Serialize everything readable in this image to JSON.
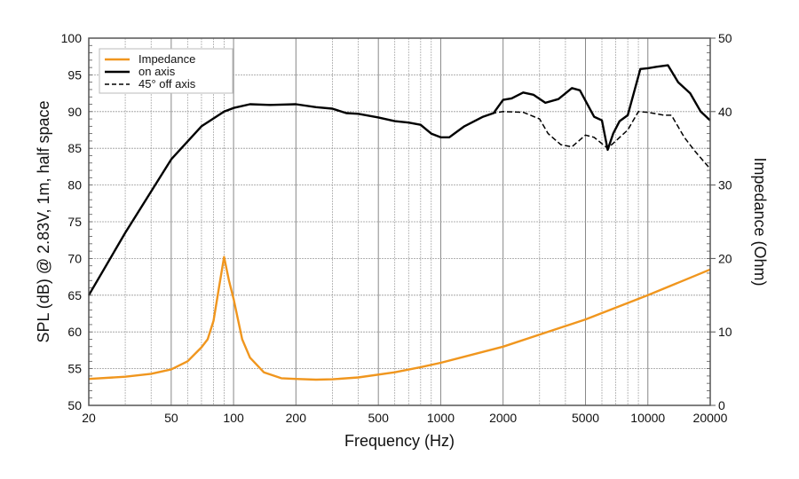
{
  "chart_data": {
    "type": "line",
    "title": "",
    "xlabel": "Frequency (Hz)",
    "ylabel": "SPL (dB) @ 2.83V, 1m, half space",
    "y2label": "Impedance (Ohm)",
    "xscale": "log",
    "xlim": [
      20,
      20000
    ],
    "ylim": [
      50,
      100
    ],
    "y2lim": [
      0,
      50
    ],
    "grid": true,
    "legend_position": "top-left",
    "xticks": [
      20,
      50,
      100,
      200,
      500,
      1000,
      2000,
      5000,
      10000,
      20000
    ],
    "yticks": [
      50,
      55,
      60,
      65,
      70,
      75,
      80,
      85,
      90,
      95,
      100
    ],
    "y2ticks": [
      0,
      10,
      20,
      30,
      40,
      50
    ],
    "series": [
      {
        "name": "Impedance",
        "axis": "right",
        "color": "#f0961e",
        "dash": "solid",
        "x": [
          20,
          30,
          40,
          50,
          60,
          70,
          75,
          80,
          85,
          90,
          95,
          100,
          110,
          120,
          140,
          170,
          200,
          250,
          300,
          400,
          600,
          800,
          1000,
          2000,
          5000,
          10000,
          20000
        ],
        "y": [
          3.6,
          3.9,
          4.3,
          4.9,
          6,
          7.9,
          9,
          11.5,
          16,
          20.2,
          17,
          14.5,
          9,
          6.5,
          4.5,
          3.7,
          3.6,
          3.5,
          3.55,
          3.8,
          4.5,
          5.2,
          5.8,
          8,
          11.7,
          15,
          18.5
        ]
      },
      {
        "name": "on axis",
        "axis": "left",
        "color": "#000000",
        "dash": "solid",
        "x": [
          20,
          30,
          50,
          70,
          90,
          100,
          120,
          150,
          200,
          250,
          300,
          350,
          400,
          500,
          600,
          700,
          800,
          900,
          1000,
          1100,
          1300,
          1600,
          1800,
          2000,
          2200,
          2500,
          2800,
          3200,
          3700,
          4300,
          4700,
          5500,
          6000,
          6400,
          6800,
          7300,
          8000,
          9200,
          10000,
          11000,
          12500,
          14000,
          16000,
          18000,
          20000
        ],
        "y": [
          65,
          73.5,
          83.5,
          88,
          90,
          90.5,
          91,
          90.9,
          91,
          90.6,
          90.4,
          89.8,
          89.7,
          89.2,
          88.7,
          88.5,
          88.2,
          87,
          86.5,
          86.5,
          88,
          89.3,
          89.8,
          91.6,
          91.8,
          92.6,
          92.3,
          91.2,
          91.7,
          93.2,
          92.9,
          89.3,
          88.8,
          84.8,
          87,
          88.7,
          89.5,
          95.8,
          95.9,
          96.1,
          96.3,
          94,
          92.5,
          90,
          88.8
        ]
      },
      {
        "name": "45° off axis",
        "axis": "left",
        "color": "#000000",
        "dash": "dashed",
        "x": [
          20,
          30,
          50,
          70,
          90,
          100,
          120,
          150,
          200,
          250,
          300,
          350,
          400,
          500,
          600,
          700,
          800,
          900,
          1000,
          1100,
          1300,
          1600,
          1800,
          2000,
          2500,
          3000,
          3300,
          3800,
          4300,
          5000,
          5500,
          6400,
          7000,
          8000,
          9000,
          10000,
          12000,
          13000,
          15000,
          17000,
          20000
        ],
        "y": [
          65,
          73.5,
          83.5,
          88,
          90,
          90.5,
          91,
          90.9,
          91,
          90.6,
          90.4,
          89.8,
          89.7,
          89.2,
          88.7,
          88.5,
          88.2,
          87,
          86.5,
          86.5,
          88,
          89.3,
          89.8,
          90,
          89.9,
          89,
          87,
          85.5,
          85.2,
          86.8,
          86.5,
          85,
          86,
          87.5,
          90,
          89.9,
          89.5,
          89.5,
          86.5,
          84.5,
          82.2
        ]
      }
    ]
  }
}
